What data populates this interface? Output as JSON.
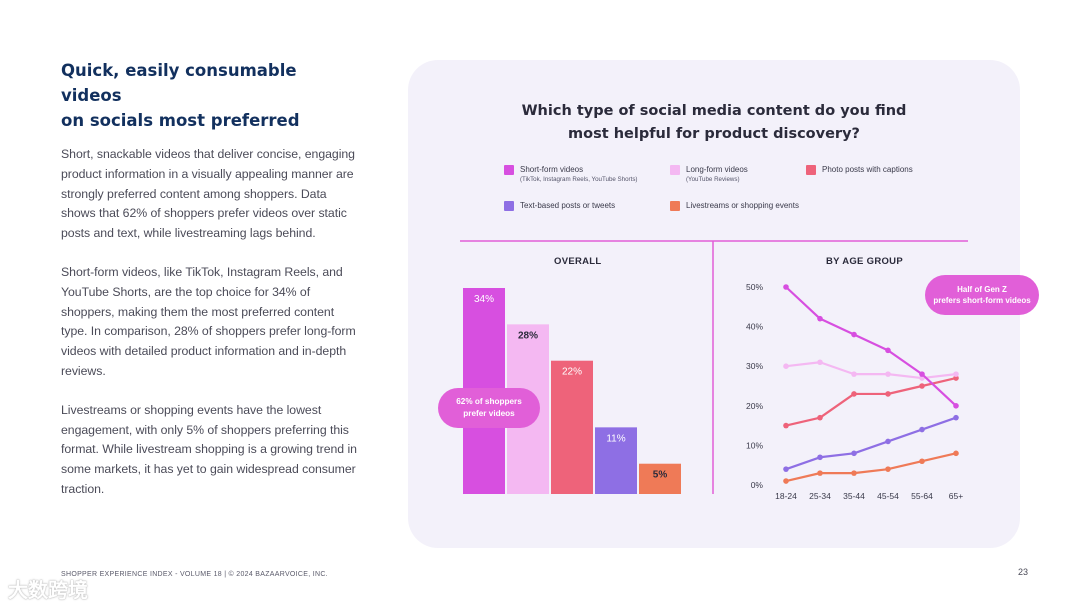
{
  "left": {
    "title_line1": "Quick, easily consumable videos",
    "title_line2": "on socials most preferred",
    "paragraphs": [
      "Short, snackable videos that deliver concise, engaging product information in a visually appealing manner are strongly preferred content among shoppers. Data shows that 62% of shoppers prefer videos over static posts and text, while livestreaming lags behind.",
      "Short-form videos, like TikTok, Instagram Reels, and YouTube Shorts, are the top choice for 34% of shoppers, making them the most preferred content type. In comparison, 28% of shoppers prefer long-form videos with detailed product information and in-depth reviews.",
      "Livestreams or shopping events have the lowest engagement, with only 5% of shoppers preferring this format. While livestream shopping is a growing trend in some markets, it has yet to gain widespread consumer traction."
    ]
  },
  "footer": {
    "text": "SHOPPER EXPERIENCE INDEX - VOLUME 18  |  © 2024 BAZAARVOICE, INC.",
    "page_number": "23"
  },
  "watermark": "大数跨境",
  "colors": {
    "short_form": "#d74fe0",
    "long_form": "#f4b8f2",
    "photo": "#ee637a",
    "text_posts": "#8e6fe4",
    "livestream": "#ef7a57",
    "divider": "#e15fd8",
    "title": "#12305e"
  },
  "chart_data": [
    {
      "type": "bar",
      "title": "Which type of social media content do you find most helpful for product discovery?",
      "section": "OVERALL",
      "categories": [
        "Short-form videos",
        "Long-form videos",
        "Photo posts with captions",
        "Text-based posts or tweets",
        "Livestreams or shopping events"
      ],
      "values": [
        34,
        28,
        22,
        11,
        5
      ],
      "value_labels": [
        "34%",
        "28%",
        "22%",
        "11%",
        "5%"
      ],
      "ylim": [
        0,
        34
      ],
      "annotation": "62% of shoppers prefer videos",
      "legend": [
        {
          "name": "Short-form videos",
          "sub": "(TikTok, Instagram Reels, YouTube Shorts)"
        },
        {
          "name": "Long-form videos",
          "sub": "(YouTube Reviews)"
        },
        {
          "name": "Photo posts with captions",
          "sub": ""
        },
        {
          "name": "Text-based posts or tweets",
          "sub": ""
        },
        {
          "name": "Livestreams or shopping events",
          "sub": ""
        }
      ]
    },
    {
      "type": "line",
      "section": "BY AGE GROUP",
      "x": [
        "18-24",
        "25-34",
        "35-44",
        "45-54",
        "55-64",
        "65+"
      ],
      "ylim": [
        0,
        50
      ],
      "yticks": [
        "0%",
        "10%",
        "20%",
        "30%",
        "40%",
        "50%"
      ],
      "annotation": "Half of Gen Z prefers short-form videos",
      "series": [
        {
          "name": "Short-form videos",
          "values": [
            50,
            42,
            38,
            34,
            28,
            20
          ]
        },
        {
          "name": "Long-form videos",
          "values": [
            30,
            31,
            28,
            28,
            27,
            28
          ]
        },
        {
          "name": "Photo posts with captions",
          "values": [
            15,
            17,
            23,
            23,
            25,
            27
          ]
        },
        {
          "name": "Text-based posts or tweets",
          "values": [
            4,
            7,
            8,
            11,
            14,
            17
          ]
        },
        {
          "name": "Livestreams or shopping events",
          "values": [
            1,
            3,
            3,
            4,
            6,
            8
          ]
        }
      ]
    }
  ]
}
